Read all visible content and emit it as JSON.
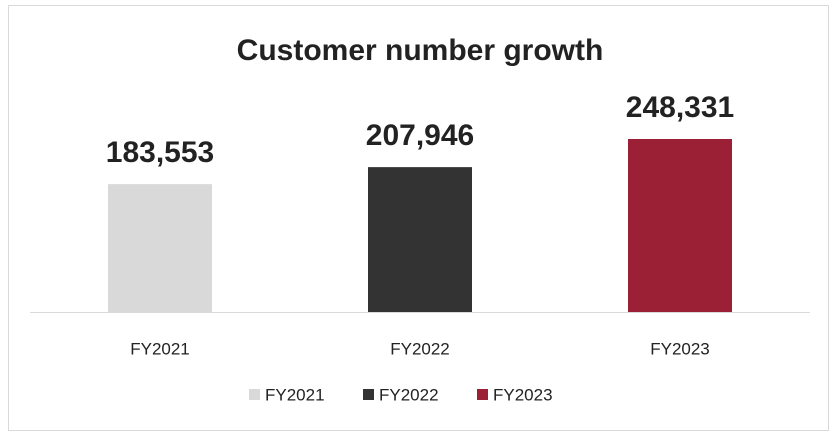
{
  "chart_data": {
    "type": "bar",
    "title": "Customer number growth",
    "categories": [
      "FY2021",
      "FY2022",
      "FY2023"
    ],
    "values": [
      183553,
      207946,
      248331
    ],
    "value_labels": [
      "183,553",
      "207,946",
      "248,331"
    ],
    "colors": [
      "#d9d9d9",
      "#333333",
      "#9b1f35"
    ],
    "ylim": [
      0,
      300000
    ],
    "legend": "bottom"
  }
}
